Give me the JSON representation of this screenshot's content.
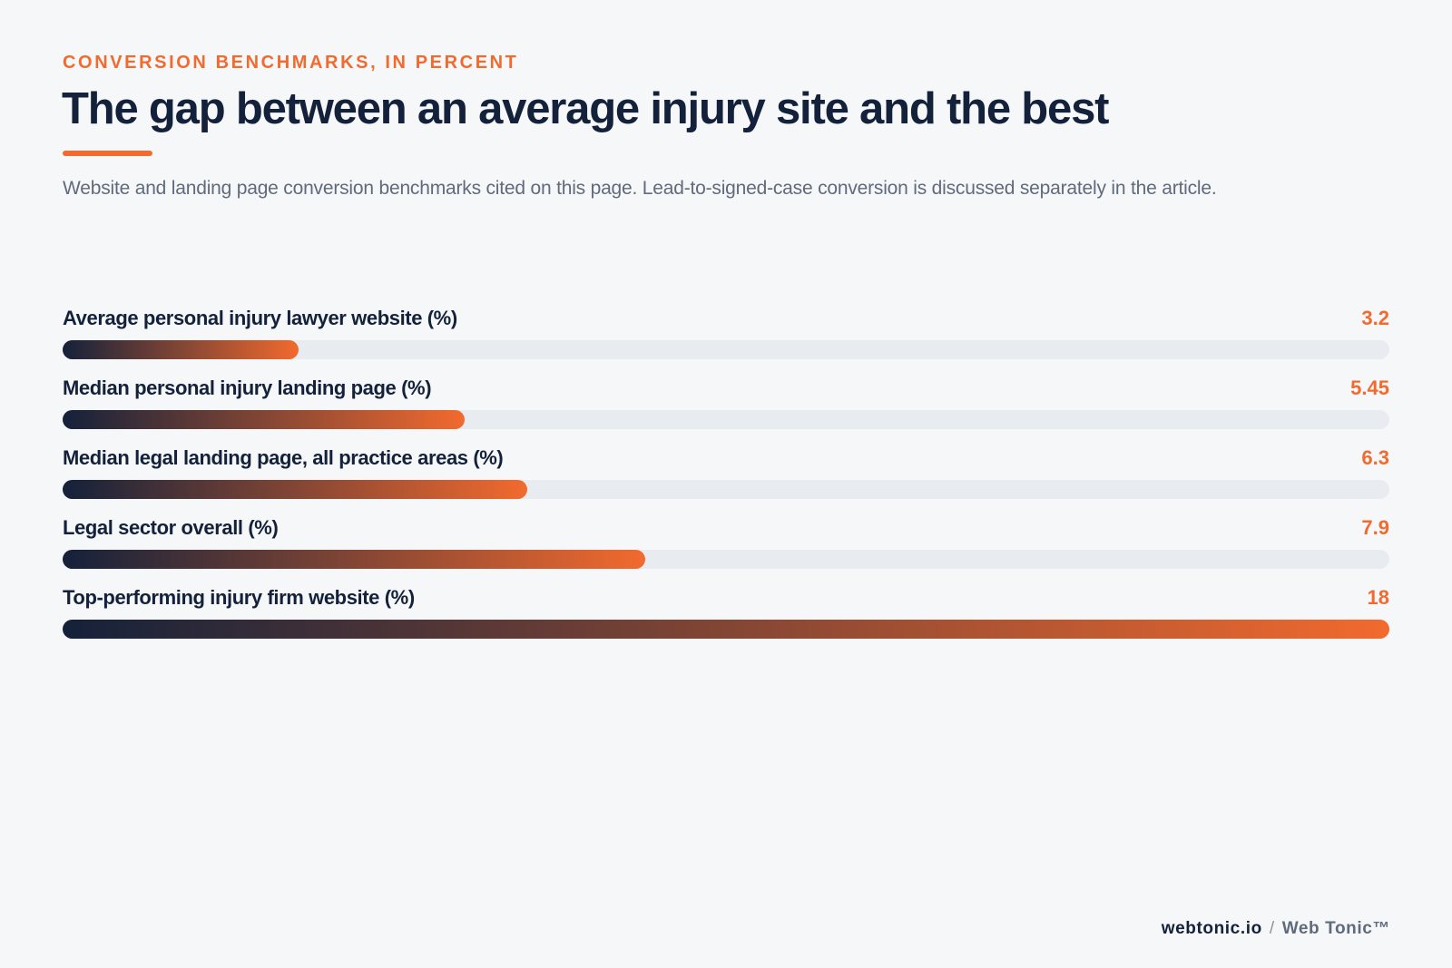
{
  "eyebrow": "CONVERSION BENCHMARKS, IN PERCENT",
  "title": "The gap between an average injury site and the best",
  "subtitle": "Website and landing page conversion benchmarks cited on this page. Lead-to-signed-case conversion is discussed separately in the article.",
  "colors": {
    "accent": "#f26a2e",
    "navy": "#14213a",
    "track": "#e8ebef",
    "background": "#f6f7f9"
  },
  "chart_data": {
    "type": "bar",
    "orientation": "horizontal",
    "categories": [
      "Average personal injury lawyer website (%)",
      "Median personal injury landing page (%)",
      "Median legal landing page, all practice areas (%)",
      "Legal sector overall (%)",
      "Top-performing injury firm website (%)"
    ],
    "value_labels": [
      "3.2",
      "5.45",
      "6.3",
      "7.9",
      "18"
    ],
    "values": [
      3.2,
      5.45,
      6.3,
      7.9,
      18
    ],
    "xlim": [
      0,
      18
    ],
    "grid": false,
    "legend": "none"
  },
  "footer": {
    "domain": "webtonic.io",
    "separator": "/",
    "brand": "Web Tonic™"
  }
}
